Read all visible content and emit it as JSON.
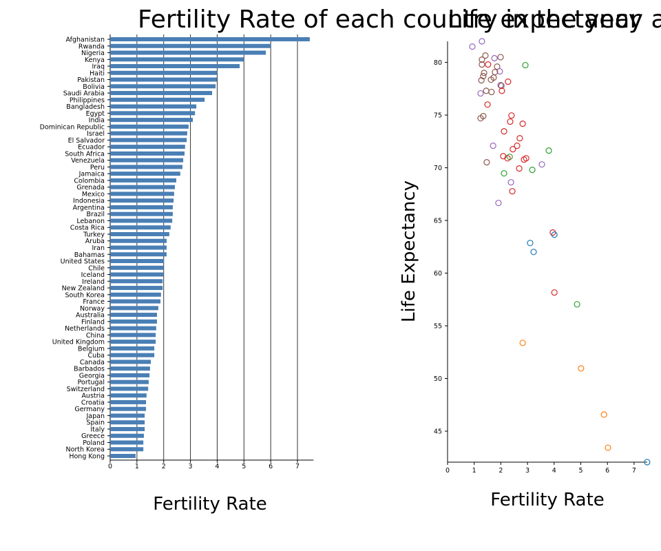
{
  "chart_data": [
    {
      "type": "bar",
      "horizontal": true,
      "title": "Fertility Rate of each country in the year",
      "x_label": "Fertility Rate",
      "color": "#4a7fb5",
      "grid": true,
      "categories": [
        "Afghanistan",
        "Rwanda",
        "Nigeria",
        "Kenya",
        "Iraq",
        "Haiti",
        "Pakistan",
        "Bolivia",
        "Saudi Arabia",
        "Philippines",
        "Bangladesh",
        "Egypt",
        "India",
        "Dominican Republic",
        "Israel",
        "El Salvador",
        "Ecuador",
        "South Africa",
        "Venezuela",
        "Peru",
        "Jamaica",
        "Colombia",
        "Grenada",
        "Mexico",
        "Indonesia",
        "Argentina",
        "Brazil",
        "Lebanon",
        "Costa Rica",
        "Turkey",
        "Aruba",
        "Iran",
        "Bahamas",
        "United States",
        "Chile",
        "Iceland",
        "Ireland",
        "New Zealand",
        "South Korea",
        "France",
        "Norway",
        "Australia",
        "Finland",
        "Netherlands",
        "China",
        "United Kingdom",
        "Belgium",
        "Cuba",
        "Canada",
        "Barbados",
        "Georgia",
        "Portugal",
        "Switzerland",
        "Austria",
        "Croatia",
        "Germany",
        "Japan",
        "Spain",
        "Italy",
        "Greece",
        "Poland",
        "North Korea",
        "Hong Kong"
      ],
      "values": [
        7.46,
        6.0,
        5.82,
        5.0,
        4.84,
        4.0,
        3.99,
        3.94,
        3.81,
        3.53,
        3.22,
        3.17,
        3.09,
        2.93,
        2.88,
        2.86,
        2.8,
        2.78,
        2.73,
        2.7,
        2.62,
        2.47,
        2.42,
        2.39,
        2.37,
        2.34,
        2.34,
        2.32,
        2.26,
        2.21,
        2.11,
        2.11,
        2.11,
        2.01,
        2.0,
        1.98,
        1.96,
        1.96,
        1.9,
        1.88,
        1.8,
        1.75,
        1.75,
        1.72,
        1.7,
        1.7,
        1.65,
        1.65,
        1.52,
        1.49,
        1.47,
        1.44,
        1.42,
        1.36,
        1.34,
        1.34,
        1.29,
        1.29,
        1.29,
        1.26,
        1.24,
        1.24,
        0.95
      ],
      "xlim": [
        0,
        7.6
      ],
      "xticks": [
        0,
        1,
        2,
        3,
        4,
        5,
        6,
        7
      ]
    },
    {
      "type": "scatter",
      "title": "Life expectancy and fertility rate",
      "x_label": "Fertility Rate",
      "y_label": "Life Expectancy",
      "x": [
        0.93,
        1.29,
        1.42,
        1.99,
        1.76,
        1.29,
        1.29,
        1.52,
        2.92,
        1.86,
        1.96,
        1.78,
        1.37,
        1.34,
        1.73,
        1.63,
        1.27,
        2.27,
        1.99,
        2.02,
        1.45,
        1.65,
        2.04,
        1.24,
        1.5,
        2.4,
        1.34,
        1.24,
        2.35,
        2.82,
        2.12,
        2.71,
        2.61,
        1.71,
        2.45,
        3.8,
        2.09,
        2.33,
        2.25,
        2.95,
        2.87,
        1.47,
        3.54,
        2.69,
        3.18,
        2.12,
        2.38,
        2.43,
        1.91,
        3.95,
        4.01,
        3.1,
        3.23,
        4.01,
        4.86,
        2.82,
        5.01,
        5.87,
        6.02,
        7.49
      ],
      "values": [
        81.5,
        82.0,
        80.65,
        80.5,
        80.4,
        80.26,
        79.8,
        79.8,
        79.74,
        79.6,
        79.15,
        79.08,
        79.0,
        78.7,
        78.56,
        78.36,
        78.3,
        78.17,
        77.84,
        77.78,
        77.3,
        77.19,
        77.3,
        77.06,
        76.0,
        74.96,
        74.9,
        74.7,
        74.38,
        74.18,
        73.46,
        72.8,
        72.09,
        72.09,
        71.76,
        71.63,
        71.1,
        71.04,
        70.9,
        70.9,
        70.78,
        70.52,
        70.32,
        69.93,
        69.8,
        69.47,
        68.62,
        67.77,
        66.66,
        63.85,
        63.65,
        62.86,
        62.01,
        58.16,
        57.04,
        53.38,
        50.96,
        46.58,
        43.43,
        42.06
      ],
      "colors": [
        "#9467bd",
        "#9467bd",
        "#8c564b",
        "#8c564b",
        "#9467bd",
        "#8c564b",
        "#8c564b",
        "#d62728",
        "#2ca02c",
        "#8c564b",
        "#9467bd",
        "#8c564b",
        "#8c564b",
        "#8c564b",
        "#8c564b",
        "#8c564b",
        "#8c564b",
        "#d62728",
        "#9467bd",
        "#8c564b",
        "#8c564b",
        "#8c564b",
        "#d62728",
        "#9467bd",
        "#d62728",
        "#d62728",
        "#8c564b",
        "#8c564b",
        "#d62728",
        "#d62728",
        "#d62728",
        "#d62728",
        "#d62728",
        "#9467bd",
        "#d62728",
        "#2ca02c",
        "#d62728",
        "#2ca02c",
        "#d62728",
        "#d62728",
        "#d62728",
        "#8c564b",
        "#9467bd",
        "#d62728",
        "#2ca02c",
        "#2ca02c",
        "#9467bd",
        "#d62728",
        "#9467bd",
        "#d62728",
        "#1f77b4",
        "#1f77b4",
        "#1f77b4",
        "#d62728",
        "#2ca02c",
        "#ff7f0e",
        "#ff7f0e",
        "#ff7f0e",
        "#ff7f0e",
        "#1f77b4"
      ],
      "xlim": [
        0,
        7.49
      ],
      "ylim": [
        42.06,
        82.0
      ],
      "xticks": [
        0,
        1,
        2,
        3,
        4,
        5,
        6,
        7
      ],
      "yticks": [
        45,
        50,
        55,
        60,
        65,
        70,
        75,
        80
      ]
    }
  ]
}
